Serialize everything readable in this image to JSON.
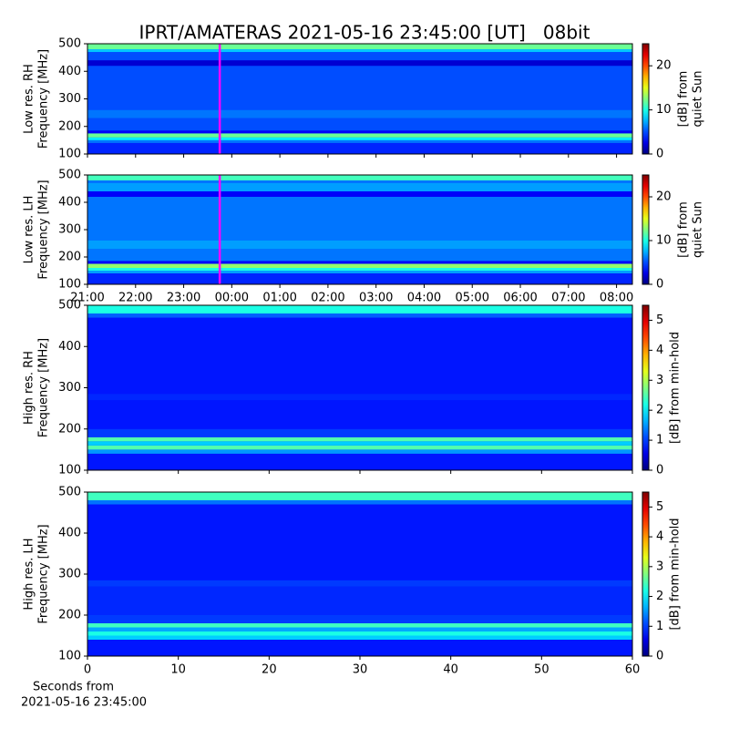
{
  "title": "IPRT/AMATERAS 2021-05-16 23:45:00 [UT]   08bit",
  "xlabel": [
    "Seconds from",
    "2021-05-16 23:45:00"
  ],
  "chart_data": [
    {
      "type": "heatmap",
      "colormap": "jet",
      "ylabel": [
        "Low res. RH",
        "Frequency [MHz]"
      ],
      "ylim": [
        100,
        500
      ],
      "yticks": [
        100,
        200,
        300,
        400,
        500
      ],
      "xlim": [
        21,
        32.33
      ],
      "xticks": [
        21,
        22,
        23,
        24,
        25,
        26,
        27,
        28,
        29,
        30,
        31,
        32
      ],
      "xtick_labels": false,
      "ybins": [
        100,
        140,
        150,
        160,
        175,
        185,
        230,
        260,
        300,
        420,
        440,
        470,
        480,
        500
      ],
      "values": [
        4,
        6,
        9,
        12,
        3,
        5,
        6,
        5,
        5,
        2,
        5,
        8,
        12
      ],
      "zlim": [
        0,
        25
      ],
      "zticks": [
        0,
        10,
        20
      ],
      "colorbar_label": [
        "[dB] from",
        "quiet Sun"
      ],
      "marker_x": 23.75,
      "marker_color": "#ff00ff"
    },
    {
      "type": "heatmap",
      "colormap": "jet",
      "ylabel": [
        "Low res. LH",
        "Frequency [MHz]"
      ],
      "ylim": [
        100,
        500
      ],
      "yticks": [
        100,
        200,
        300,
        400,
        500
      ],
      "xlim": [
        21,
        32.33
      ],
      "xticks": [
        {
          "value": 21,
          "label": "21:00"
        },
        {
          "value": 22,
          "label": "22:00"
        },
        {
          "value": 23,
          "label": "23:00"
        },
        {
          "value": 24,
          "label": "00:00"
        },
        {
          "value": 25,
          "label": "01:00"
        },
        {
          "value": 26,
          "label": "02:00"
        },
        {
          "value": 27,
          "label": "03:00"
        },
        {
          "value": 28,
          "label": "04:00"
        },
        {
          "value": 29,
          "label": "05:00"
        },
        {
          "value": 30,
          "label": "06:00"
        },
        {
          "value": 31,
          "label": "07:00"
        },
        {
          "value": 32,
          "label": "08:00"
        }
      ],
      "xtick_labels": true,
      "ybins": [
        100,
        140,
        150,
        160,
        175,
        185,
        230,
        260,
        300,
        420,
        440,
        470,
        480,
        500
      ],
      "values": [
        4,
        7,
        10,
        13,
        3,
        6,
        7,
        6,
        6,
        3,
        7,
        6,
        11
      ],
      "zlim": [
        0,
        25
      ],
      "zticks": [
        0,
        10,
        20
      ],
      "colorbar_label": [
        "[dB] from",
        "quiet Sun"
      ],
      "marker_x": 23.75,
      "marker_color": "#ff00ff"
    },
    {
      "type": "heatmap",
      "colormap": "jet",
      "ylabel": [
        "High res. RH",
        "Frequency [MHz]"
      ],
      "ylim": [
        100,
        500
      ],
      "yticks": [
        100,
        200,
        300,
        400,
        500
      ],
      "xlim": [
        0,
        60
      ],
      "xticks": [
        0,
        10,
        20,
        30,
        40,
        50,
        60
      ],
      "xtick_labels": false,
      "ybins": [
        100,
        140,
        150,
        160,
        170,
        180,
        200,
        270,
        285,
        470,
        480,
        500
      ],
      "values": [
        0.8,
        1.5,
        2.5,
        1.8,
        2.5,
        1.0,
        0.8,
        0.9,
        0.8,
        1.2,
        2.2
      ],
      "zlim": [
        0,
        5.5
      ],
      "zticks": [
        0,
        1,
        2,
        3,
        4,
        5
      ],
      "colorbar_label": [
        "[dB] from min-hold"
      ]
    },
    {
      "type": "heatmap",
      "colormap": "jet",
      "ylabel": [
        "High res. LH",
        "Frequency [MHz]"
      ],
      "ylim": [
        100,
        500
      ],
      "yticks": [
        100,
        200,
        300,
        400,
        500
      ],
      "xlim": [
        0,
        60
      ],
      "xticks": [
        0,
        10,
        20,
        30,
        40,
        50,
        60
      ],
      "xtick_labels": true,
      "ybins": [
        100,
        140,
        150,
        160,
        170,
        180,
        200,
        270,
        285,
        470,
        480,
        500
      ],
      "values": [
        0.8,
        1.8,
        2.2,
        1.6,
        2.4,
        1.0,
        0.9,
        1.0,
        0.8,
        1.3,
        2.4
      ],
      "zlim": [
        0,
        5.5
      ],
      "zticks": [
        0,
        1,
        2,
        3,
        4,
        5
      ],
      "colorbar_label": [
        "[dB] from min-hold"
      ]
    }
  ]
}
